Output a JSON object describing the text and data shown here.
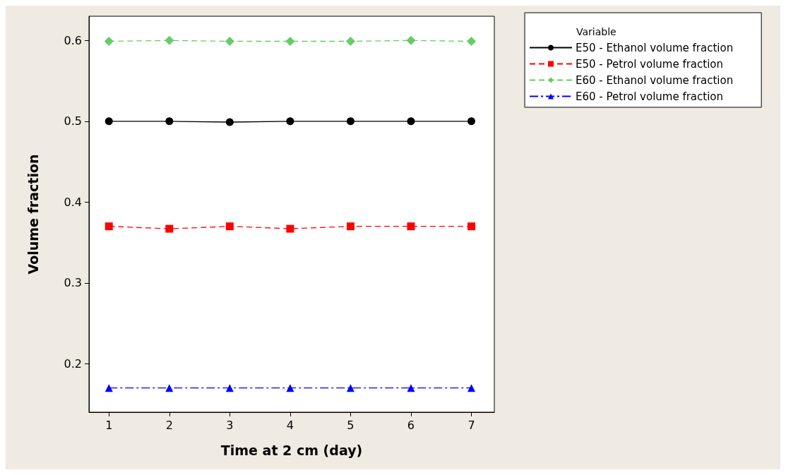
{
  "chart_data": {
    "type": "line",
    "xlabel": "Time at 2 cm (day)",
    "ylabel": "Volume fraction",
    "legend_title": "Variable",
    "legend": "top right",
    "grid": false,
    "x": [
      1,
      2,
      3,
      4,
      5,
      6,
      7
    ],
    "xlim": [
      0.67,
      7.38
    ],
    "xticks": [
      1,
      2,
      3,
      4,
      5,
      6,
      7
    ],
    "ylim": [
      0.14,
      0.63
    ],
    "yticks": [
      0.2,
      0.3,
      0.4,
      0.5,
      0.6
    ],
    "series": [
      {
        "name": "E50 - Ethanol volume fraction",
        "color": "#000000",
        "marker": "circle",
        "line_style": "solid",
        "values": [
          0.5,
          0.5,
          0.499,
          0.5,
          0.5,
          0.5,
          0.5
        ]
      },
      {
        "name": "E50 - Petrol volume fraction",
        "color": "#ff0000",
        "marker": "square",
        "line_style": "dashed",
        "values": [
          0.37,
          0.367,
          0.37,
          0.367,
          0.37,
          0.37,
          0.37
        ]
      },
      {
        "name": "E60 - Ethanol volume fraction",
        "color": "#66cc66",
        "marker": "diamond",
        "line_style": "dashed",
        "values": [
          0.599,
          0.6,
          0.599,
          0.599,
          0.599,
          0.6,
          0.599
        ]
      },
      {
        "name": "E60 - Petrol volume fraction",
        "color": "#0000ff",
        "marker": "triangle",
        "line_style": "dashdot",
        "values": [
          0.17,
          0.17,
          0.17,
          0.17,
          0.17,
          0.17,
          0.17
        ]
      }
    ]
  }
}
